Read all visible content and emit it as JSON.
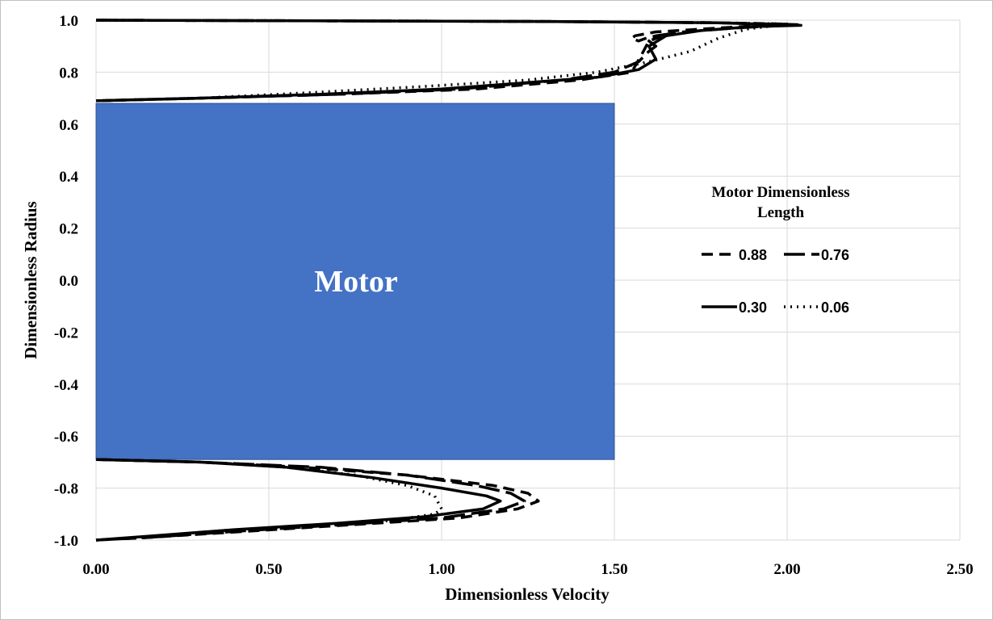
{
  "chart_data": {
    "type": "line",
    "title": "",
    "xlabel": "Dimensionless Velocity",
    "ylabel": "Dimensionless Radius",
    "xlim": [
      0,
      2.5
    ],
    "ylim": [
      -1.0,
      1.0
    ],
    "x_ticks": [
      "0.00",
      "0.50",
      "1.00",
      "1.50",
      "2.00",
      "2.50"
    ],
    "y_ticks": [
      "1.0",
      "0.8",
      "0.6",
      "0.4",
      "0.2",
      "0.0",
      "-0.2",
      "-0.4",
      "-0.6",
      "-0.8",
      "-1.0"
    ],
    "grid": "on",
    "legend": {
      "title": "Motor Dimensionless Length",
      "placement": "right",
      "entries": [
        "0.88",
        "0.76",
        "0.30",
        "0.06"
      ]
    },
    "annotation": {
      "text": "Motor",
      "x_range": [
        0,
        1.5
      ],
      "y_range": [
        -0.69,
        0.68
      ],
      "color": "#4472c4"
    },
    "series": [
      {
        "name": "0.88",
        "dash": "dash",
        "points": [
          [
            0.0,
            1.0
          ],
          [
            1.3,
            0.995
          ],
          [
            1.8,
            0.99
          ],
          [
            2.0,
            0.985
          ],
          [
            1.8,
            0.97
          ],
          [
            1.62,
            0.955
          ],
          [
            1.56,
            0.94
          ],
          [
            1.55,
            0.93
          ],
          [
            1.57,
            0.92
          ],
          [
            1.6,
            0.935
          ],
          [
            1.65,
            0.945
          ],
          [
            1.6,
            0.92
          ],
          [
            1.58,
            0.87
          ],
          [
            1.55,
            0.8
          ],
          [
            1.4,
            0.77
          ],
          [
            1.1,
            0.735
          ],
          [
            0.7,
            0.715
          ],
          [
            0.3,
            0.7
          ],
          [
            0.0,
            0.69
          ],
          [
            0.0,
            -0.69
          ],
          [
            0.3,
            -0.7
          ],
          [
            0.6,
            -0.72
          ],
          [
            0.9,
            -0.75
          ],
          [
            1.15,
            -0.79
          ],
          [
            1.25,
            -0.82
          ],
          [
            1.28,
            -0.85
          ],
          [
            1.22,
            -0.88
          ],
          [
            1.05,
            -0.915
          ],
          [
            0.75,
            -0.94
          ],
          [
            0.45,
            -0.965
          ],
          [
            0.15,
            -0.99
          ],
          [
            0.0,
            -1.0
          ]
        ]
      },
      {
        "name": "0.76",
        "dash": "longdash",
        "points": [
          [
            0.0,
            1.0
          ],
          [
            1.3,
            0.995
          ],
          [
            1.8,
            0.99
          ],
          [
            2.03,
            0.983
          ],
          [
            1.85,
            0.97
          ],
          [
            1.7,
            0.955
          ],
          [
            1.62,
            0.94
          ],
          [
            1.6,
            0.92
          ],
          [
            1.62,
            0.9
          ],
          [
            1.6,
            0.88
          ],
          [
            1.57,
            0.84
          ],
          [
            1.5,
            0.8
          ],
          [
            1.35,
            0.77
          ],
          [
            1.05,
            0.735
          ],
          [
            0.7,
            0.715
          ],
          [
            0.3,
            0.7
          ],
          [
            0.0,
            0.69
          ],
          [
            0.0,
            -0.69
          ],
          [
            0.3,
            -0.7
          ],
          [
            0.65,
            -0.72
          ],
          [
            0.9,
            -0.75
          ],
          [
            1.1,
            -0.79
          ],
          [
            1.2,
            -0.82
          ],
          [
            1.24,
            -0.85
          ],
          [
            1.18,
            -0.88
          ],
          [
            1.0,
            -0.915
          ],
          [
            0.72,
            -0.94
          ],
          [
            0.42,
            -0.965
          ],
          [
            0.15,
            -0.99
          ],
          [
            0.0,
            -1.0
          ]
        ]
      },
      {
        "name": "0.30",
        "dash": "solid",
        "points": [
          [
            0.0,
            1.0
          ],
          [
            1.3,
            0.995
          ],
          [
            1.8,
            0.99
          ],
          [
            2.04,
            0.98
          ],
          [
            1.9,
            0.975
          ],
          [
            1.75,
            0.96
          ],
          [
            1.65,
            0.94
          ],
          [
            1.6,
            0.9
          ],
          [
            1.62,
            0.85
          ],
          [
            1.57,
            0.81
          ],
          [
            1.45,
            0.78
          ],
          [
            1.25,
            0.76
          ],
          [
            1.0,
            0.735
          ],
          [
            0.65,
            0.715
          ],
          [
            0.3,
            0.7
          ],
          [
            0.0,
            0.69
          ],
          [
            0.0,
            -0.69
          ],
          [
            0.3,
            -0.7
          ],
          [
            0.55,
            -0.72
          ],
          [
            0.8,
            -0.76
          ],
          [
            1.0,
            -0.8
          ],
          [
            1.13,
            -0.83
          ],
          [
            1.17,
            -0.85
          ],
          [
            1.12,
            -0.88
          ],
          [
            0.95,
            -0.91
          ],
          [
            0.7,
            -0.935
          ],
          [
            0.4,
            -0.96
          ],
          [
            0.15,
            -0.985
          ],
          [
            0.0,
            -1.0
          ]
        ]
      },
      {
        "name": "0.06",
        "dash": "dot",
        "points": [
          [
            0.0,
            1.0
          ],
          [
            1.3,
            0.995
          ],
          [
            1.8,
            0.99
          ],
          [
            2.0,
            0.985
          ],
          [
            1.88,
            0.965
          ],
          [
            1.8,
            0.93
          ],
          [
            1.72,
            0.88
          ],
          [
            1.6,
            0.84
          ],
          [
            1.45,
            0.8
          ],
          [
            1.25,
            0.77
          ],
          [
            0.95,
            0.745
          ],
          [
            0.6,
            0.72
          ],
          [
            0.3,
            0.7
          ],
          [
            0.0,
            0.69
          ],
          [
            0.0,
            -0.69
          ],
          [
            0.3,
            -0.7
          ],
          [
            0.55,
            -0.72
          ],
          [
            0.75,
            -0.75
          ],
          [
            0.9,
            -0.79
          ],
          [
            0.98,
            -0.83
          ],
          [
            1.0,
            -0.88
          ],
          [
            0.98,
            -0.9
          ],
          [
            0.85,
            -0.925
          ],
          [
            0.6,
            -0.945
          ],
          [
            0.35,
            -0.965
          ],
          [
            0.12,
            -0.99
          ],
          [
            0.0,
            -1.0
          ]
        ]
      }
    ]
  }
}
